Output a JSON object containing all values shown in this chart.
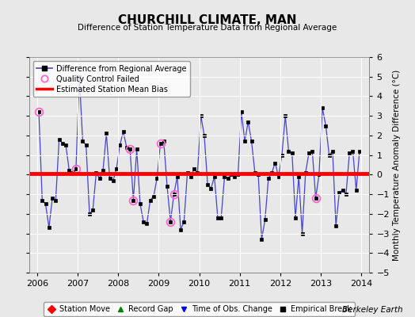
{
  "title": "CHURCHILL CLIMATE, MAN",
  "subtitle": "Difference of Station Temperature Data from Regional Average",
  "ylabel_right": "Monthly Temperature Anomaly Difference (°C)",
  "credit": "Berkeley Earth",
  "bias": 0.05,
  "xlim": [
    2005.8,
    2014.2
  ],
  "ylim": [
    -5,
    6
  ],
  "yticks": [
    -5,
    -4,
    -3,
    -2,
    -1,
    0,
    1,
    2,
    3,
    4,
    5,
    6
  ],
  "xticks": [
    2006,
    2007,
    2008,
    2009,
    2010,
    2011,
    2012,
    2013,
    2014
  ],
  "line_color": "#4444cc",
  "marker_color": "#000000",
  "bias_color": "#ff0000",
  "qc_color": "#ff66cc",
  "background_color": "#e8e8e8",
  "grid_color": "#ffffff",
  "data": [
    2006.042,
    3.2,
    2006.125,
    -1.3,
    2006.208,
    -1.5,
    2006.292,
    -2.7,
    2006.375,
    -1.2,
    2006.458,
    -1.3,
    2006.542,
    1.8,
    2006.625,
    1.6,
    2006.708,
    1.5,
    2006.792,
    0.2,
    2006.875,
    0.1,
    2006.958,
    0.3,
    2007.042,
    5.0,
    2007.125,
    1.7,
    2007.208,
    1.5,
    2007.292,
    -2.0,
    2007.375,
    -1.8,
    2007.458,
    0.1,
    2007.542,
    -0.2,
    2007.625,
    0.2,
    2007.708,
    2.1,
    2007.792,
    -0.2,
    2007.875,
    -0.3,
    2007.958,
    0.3,
    2008.042,
    1.5,
    2008.125,
    2.2,
    2008.208,
    1.4,
    2008.292,
    1.3,
    2008.375,
    -1.3,
    2008.458,
    1.3,
    2008.542,
    -1.5,
    2008.625,
    -2.4,
    2008.708,
    -2.5,
    2008.792,
    -1.3,
    2008.875,
    -1.1,
    2008.958,
    -0.2,
    2009.042,
    1.6,
    2009.125,
    1.7,
    2009.208,
    -0.6,
    2009.292,
    -2.4,
    2009.375,
    -1.0,
    2009.458,
    -0.1,
    2009.542,
    -2.8,
    2009.625,
    -2.4,
    2009.708,
    0.1,
    2009.792,
    -0.1,
    2009.875,
    0.3,
    2009.958,
    0.1,
    2010.042,
    3.0,
    2010.125,
    2.0,
    2010.208,
    -0.5,
    2010.292,
    -0.7,
    2010.375,
    -0.1,
    2010.458,
    -2.2,
    2010.542,
    -2.2,
    2010.625,
    -0.1,
    2010.708,
    -0.2,
    2010.792,
    0.0,
    2010.875,
    -0.1,
    2010.958,
    0.0,
    2011.042,
    3.2,
    2011.125,
    1.7,
    2011.208,
    2.7,
    2011.292,
    1.7,
    2011.375,
    0.1,
    2011.458,
    0.0,
    2011.542,
    -3.3,
    2011.625,
    -2.3,
    2011.708,
    -0.2,
    2011.792,
    0.1,
    2011.875,
    0.6,
    2011.958,
    -0.1,
    2012.042,
    1.0,
    2012.125,
    3.0,
    2012.208,
    1.2,
    2012.292,
    1.1,
    2012.375,
    -2.2,
    2012.458,
    -0.1,
    2012.542,
    -3.0,
    2012.625,
    0.1,
    2012.708,
    1.1,
    2012.792,
    1.2,
    2012.875,
    -1.2,
    2012.958,
    0.0,
    2013.042,
    3.4,
    2013.125,
    2.5,
    2013.208,
    1.0,
    2013.292,
    1.2,
    2013.375,
    -2.6,
    2013.458,
    -0.9,
    2013.542,
    -0.8,
    2013.625,
    -1.0,
    2013.708,
    1.1,
    2013.792,
    1.2,
    2013.875,
    -0.8,
    2013.958,
    1.2
  ],
  "qc_failed": [
    [
      2006.042,
      3.2
    ],
    [
      2006.958,
      0.3
    ],
    [
      2008.292,
      1.3
    ],
    [
      2008.375,
      -1.3
    ],
    [
      2009.042,
      1.6
    ],
    [
      2009.292,
      -2.4
    ],
    [
      2009.375,
      -1.0
    ],
    [
      2012.875,
      -1.2
    ]
  ]
}
